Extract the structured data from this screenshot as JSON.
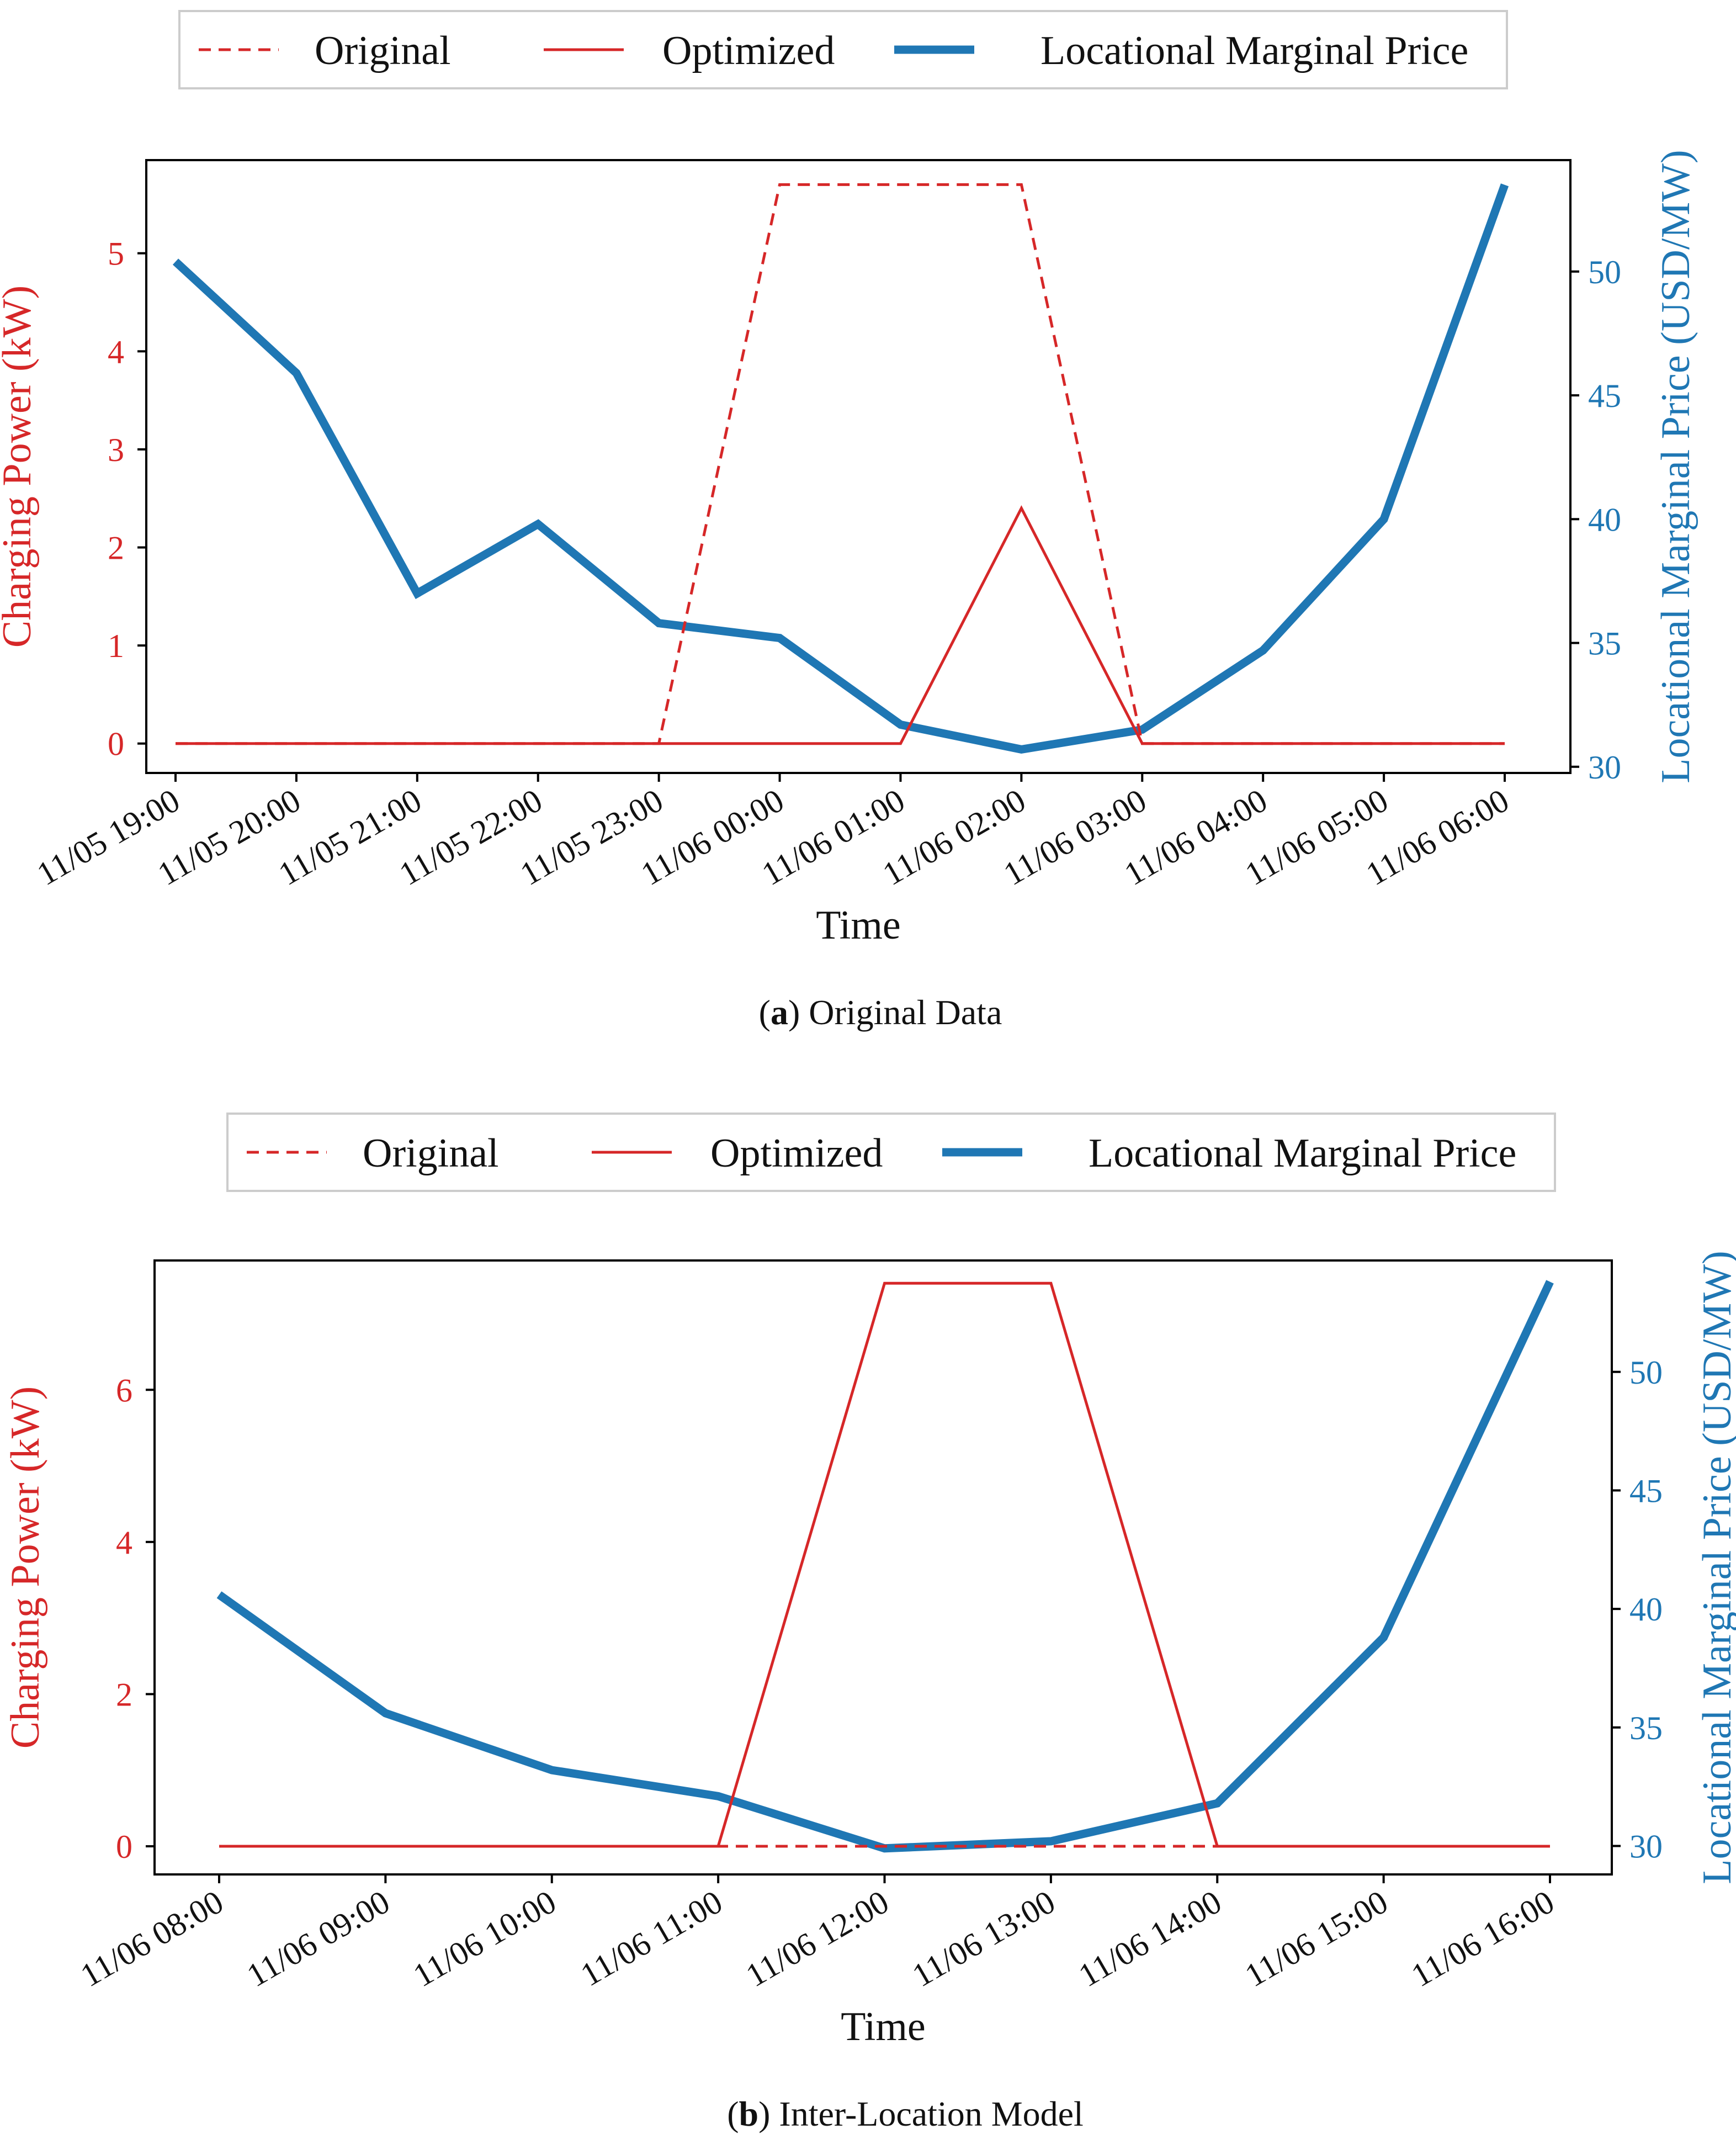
{
  "colors": {
    "charging": "#d62728",
    "price": "#1f77b4",
    "axis": "#000000",
    "legend_border": "#cccccc"
  },
  "chart_data": [
    {
      "type": "line",
      "panel_label": "a",
      "caption": "Original Data",
      "xlabel": "Time",
      "ylabel_left": "Charging Power (kW)",
      "ylabel_right": "Locational Marginal Price (USD/MW)",
      "legend": [
        "Original",
        "Optimized",
        "Locational Marginal Price"
      ],
      "legend_position": "top-center",
      "categories": [
        "11/05 19:00",
        "11/05 20:00",
        "11/05 21:00",
        "11/05 22:00",
        "11/05 23:00",
        "11/06 00:00",
        "11/06 01:00",
        "11/06 02:00",
        "11/06 03:00",
        "11/06 04:00",
        "11/06 05:00",
        "11/06 06:00"
      ],
      "left_ylim": [
        -0.3,
        5.95
      ],
      "left_yticks": [
        0,
        1,
        2,
        3,
        4,
        5
      ],
      "right_ylim": [
        29.75,
        54.5
      ],
      "right_yticks": [
        30,
        35,
        40,
        45,
        50
      ],
      "series": [
        {
          "name": "Original",
          "axis": "left",
          "style": "dashed",
          "values": [
            0,
            0,
            0,
            0,
            0,
            5.7,
            5.7,
            5.7,
            0,
            0,
            0,
            0
          ]
        },
        {
          "name": "Optimized",
          "axis": "left",
          "style": "solid",
          "values": [
            0,
            0,
            0,
            0,
            0,
            0,
            0,
            2.4,
            0,
            0,
            0,
            0
          ]
        },
        {
          "name": "Locational Marginal Price",
          "axis": "right",
          "style": "thick",
          "values": [
            50.4,
            45.9,
            37.0,
            39.8,
            35.8,
            35.2,
            31.7,
            30.7,
            31.5,
            34.7,
            40.0,
            53.5
          ]
        }
      ]
    },
    {
      "type": "line",
      "panel_label": "b",
      "caption": "Inter-Location Model",
      "xlabel": "Time",
      "ylabel_left": "Charging Power (kW)",
      "ylabel_right": "Locational Marginal Price (USD/MW)",
      "legend": [
        "Original",
        "Optimized",
        "Locational Marginal Price"
      ],
      "legend_position": "top-center",
      "categories": [
        "11/06 08:00",
        "11/06 09:00",
        "11/06 10:00",
        "11/06 11:00",
        "11/06 12:00",
        "11/06 13:00",
        "11/06 14:00",
        "11/06 15:00",
        "11/06 16:00"
      ],
      "left_ylim": [
        -0.37,
        7.7
      ],
      "left_yticks": [
        0,
        2,
        4,
        6
      ],
      "right_ylim": [
        28.8,
        54.7
      ],
      "right_yticks": [
        30,
        35,
        40,
        45,
        50
      ],
      "series": [
        {
          "name": "Original",
          "axis": "left",
          "style": "dashed",
          "values": [
            0,
            0,
            0,
            0,
            0,
            0,
            0,
            0,
            0
          ]
        },
        {
          "name": "Optimized",
          "axis": "left",
          "style": "solid",
          "values": [
            0,
            0,
            0,
            0,
            7.4,
            7.4,
            0,
            0,
            0
          ]
        },
        {
          "name": "Locational Marginal Price",
          "axis": "right",
          "style": "thick",
          "values": [
            40.6,
            35.6,
            33.2,
            32.1,
            29.9,
            30.2,
            31.8,
            38.8,
            53.8
          ]
        }
      ]
    }
  ]
}
